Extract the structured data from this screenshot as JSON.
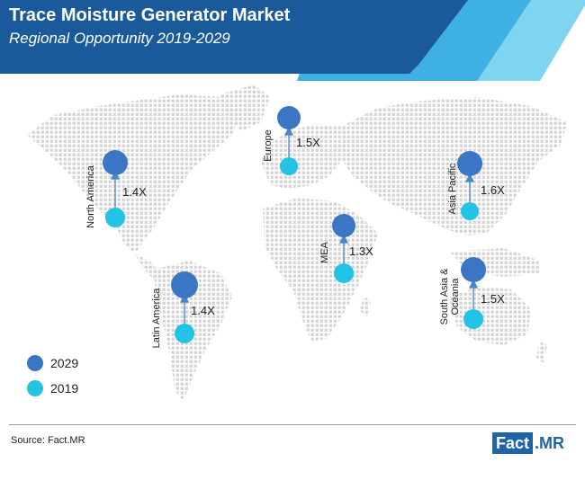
{
  "header": {
    "title": "Trace Moisture Generator Market",
    "subtitle": "Regional Opportunity 2019-2029"
  },
  "colors": {
    "c2029": "#3a76c4",
    "c2019": "#22c3e4",
    "header_dark": "#1a5a9a",
    "map_dots": "#d0d0d0"
  },
  "regions": [
    {
      "name": "North America",
      "multiplier": "1.4X"
    },
    {
      "name": "Europe",
      "multiplier": "1.5X"
    },
    {
      "name": "Asia Pacific",
      "multiplier": "1.6X"
    },
    {
      "name": "MEA",
      "multiplier": "1.3X"
    },
    {
      "name": "South Asia & Oceania",
      "multiplier": "1.5X"
    },
    {
      "name": "Latin America",
      "multiplier": "1.4X"
    }
  ],
  "legend": {
    "y2029": "2029",
    "y2019": "2019"
  },
  "footer": {
    "source": "Source: Fact.MR",
    "logo_fact": "Fact",
    "logo_mr": ".MR"
  }
}
